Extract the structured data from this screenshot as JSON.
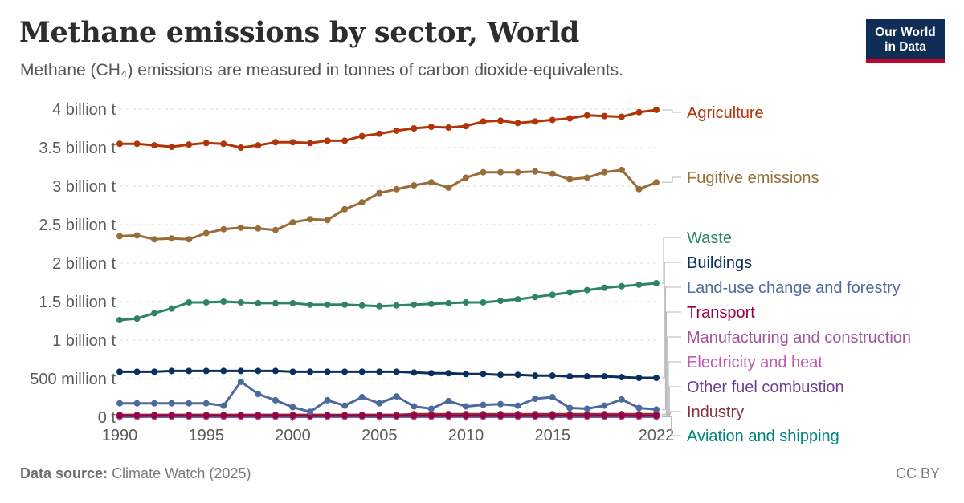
{
  "header": {
    "title": "Methane emissions by sector, World",
    "subtitle": "Methane (CH₄) emissions are measured in tonnes of carbon dioxide-equivalents.",
    "logo_line1": "Our World",
    "logo_line2": "in Data"
  },
  "footer": {
    "source_label": "Data source:",
    "source_value": "Climate Watch (2025)",
    "license": "CC BY"
  },
  "chart_data": {
    "type": "line",
    "title": "Methane emissions by sector, World",
    "subtitle": "Methane (CH₄) emissions are measured in tonnes of carbon dioxide-equivalents.",
    "xlabel": "",
    "ylabel": "",
    "ylim": [
      0,
      4000000000
    ],
    "xlim": [
      1990,
      2021
    ],
    "grid": true,
    "legend_position": "right",
    "x_ticks": [
      1990,
      1995,
      2000,
      2005,
      2010,
      2015,
      2022
    ],
    "x_tick_labels": [
      "1990",
      "1995",
      "2000",
      "2005",
      "2010",
      "2015",
      "2022"
    ],
    "y_ticks": [
      0,
      500000000,
      1000000000,
      1500000000,
      2000000000,
      2500000000,
      3000000000,
      3500000000,
      4000000000
    ],
    "y_tick_labels": [
      "0 t",
      "500 million t",
      "1 billion t",
      "1.5 billion t",
      "2 billion t",
      "2.5 billion t",
      "3 billion t",
      "3.5 billion t",
      "4 billion t"
    ],
    "x": [
      1990,
      1991,
      1992,
      1993,
      1994,
      1995,
      1996,
      1997,
      1998,
      1999,
      2000,
      2001,
      2002,
      2003,
      2004,
      2005,
      2006,
      2007,
      2008,
      2009,
      2010,
      2011,
      2012,
      2013,
      2014,
      2015,
      2016,
      2017,
      2018,
      2019,
      2020,
      2021
    ],
    "series": [
      {
        "name": "Agriculture",
        "color": "#b13507",
        "values": [
          3550000000,
          3550000000,
          3530000000,
          3510000000,
          3540000000,
          3560000000,
          3550000000,
          3500000000,
          3530000000,
          3570000000,
          3570000000,
          3560000000,
          3590000000,
          3590000000,
          3650000000,
          3680000000,
          3720000000,
          3750000000,
          3770000000,
          3760000000,
          3780000000,
          3840000000,
          3850000000,
          3820000000,
          3840000000,
          3860000000,
          3880000000,
          3920000000,
          3910000000,
          3900000000,
          3960000000,
          3990000000
        ]
      },
      {
        "name": "Fugitive emissions",
        "color": "#996d39",
        "values": [
          2350000000,
          2360000000,
          2310000000,
          2320000000,
          2310000000,
          2390000000,
          2440000000,
          2460000000,
          2450000000,
          2430000000,
          2530000000,
          2570000000,
          2560000000,
          2700000000,
          2790000000,
          2910000000,
          2960000000,
          3010000000,
          3050000000,
          2980000000,
          3110000000,
          3180000000,
          3180000000,
          3180000000,
          3190000000,
          3160000000,
          3090000000,
          3110000000,
          3180000000,
          3210000000,
          2960000000,
          3050000000
        ]
      },
      {
        "name": "Waste",
        "color": "#2c8465",
        "values": [
          1260000000,
          1280000000,
          1350000000,
          1410000000,
          1490000000,
          1490000000,
          1500000000,
          1490000000,
          1480000000,
          1480000000,
          1480000000,
          1460000000,
          1460000000,
          1460000000,
          1450000000,
          1440000000,
          1450000000,
          1460000000,
          1470000000,
          1480000000,
          1490000000,
          1490000000,
          1510000000,
          1530000000,
          1560000000,
          1590000000,
          1620000000,
          1650000000,
          1680000000,
          1700000000,
          1720000000,
          1740000000
        ]
      },
      {
        "name": "Buildings",
        "color": "#0a2f5e",
        "values": [
          590000000,
          590000000,
          590000000,
          600000000,
          600000000,
          600000000,
          600000000,
          600000000,
          600000000,
          600000000,
          590000000,
          590000000,
          590000000,
          590000000,
          590000000,
          590000000,
          590000000,
          580000000,
          570000000,
          570000000,
          560000000,
          560000000,
          550000000,
          550000000,
          540000000,
          540000000,
          530000000,
          530000000,
          530000000,
          520000000,
          510000000,
          510000000
        ]
      },
      {
        "name": "Land-use change and forestry",
        "color": "#4c6a9c",
        "values": [
          180000000,
          180000000,
          180000000,
          180000000,
          180000000,
          180000000,
          150000000,
          460000000,
          300000000,
          220000000,
          130000000,
          70000000,
          220000000,
          150000000,
          260000000,
          180000000,
          270000000,
          140000000,
          110000000,
          210000000,
          140000000,
          160000000,
          170000000,
          150000000,
          240000000,
          260000000,
          120000000,
          110000000,
          150000000,
          230000000,
          120000000,
          100000000
        ]
      },
      {
        "name": "Transport",
        "color": "#970046",
        "values": [
          20000000,
          20000000,
          20000000,
          20000000,
          20000000,
          20000000,
          20000000,
          20000000,
          20000000,
          20000000,
          20000000,
          20000000,
          20000000,
          20000000,
          20000000,
          20000000,
          20000000,
          20000000,
          20000000,
          20000000,
          20000000,
          20000000,
          20000000,
          20000000,
          20000000,
          20000000,
          20000000,
          20000000,
          20000000,
          20000000,
          20000000,
          20000000
        ]
      },
      {
        "name": "Manufacturing and construction",
        "color": "#a2559c",
        "values": [
          20000000,
          20000000,
          20000000,
          20000000,
          20000000,
          20000000,
          20000000,
          20000000,
          20000000,
          20000000,
          20000000,
          20000000,
          20000000,
          20000000,
          20000000,
          20000000,
          20000000,
          20000000,
          20000000,
          20000000,
          20000000,
          20000000,
          20000000,
          20000000,
          20000000,
          20000000,
          20000000,
          20000000,
          20000000,
          20000000,
          20000000,
          20000000
        ]
      },
      {
        "name": "Electricity and heat",
        "color": "#c05ab0",
        "values": [
          10000000,
          10000000,
          10000000,
          10000000,
          10000000,
          10000000,
          10000000,
          10000000,
          10000000,
          10000000,
          10000000,
          10000000,
          10000000,
          10000000,
          10000000,
          10000000,
          10000000,
          10000000,
          10000000,
          10000000,
          10000000,
          10000000,
          10000000,
          10000000,
          10000000,
          10000000,
          10000000,
          10000000,
          10000000,
          10000000,
          10000000,
          10000000
        ]
      },
      {
        "name": "Other fuel combustion",
        "color": "#6d3e91",
        "values": [
          10000000,
          10000000,
          10000000,
          10000000,
          10000000,
          10000000,
          10000000,
          10000000,
          10000000,
          10000000,
          10000000,
          10000000,
          10000000,
          10000000,
          10000000,
          10000000,
          10000000,
          10000000,
          10000000,
          10000000,
          10000000,
          10000000,
          10000000,
          10000000,
          10000000,
          10000000,
          10000000,
          10000000,
          10000000,
          10000000,
          10000000,
          10000000
        ]
      },
      {
        "name": "Industry",
        "color": "#883039",
        "values": [
          30000000,
          30000000,
          30000000,
          30000000,
          30000000,
          30000000,
          30000000,
          30000000,
          30000000,
          30000000,
          30000000,
          30000000,
          30000000,
          30000000,
          30000000,
          30000000,
          30000000,
          40000000,
          40000000,
          40000000,
          40000000,
          40000000,
          40000000,
          40000000,
          40000000,
          40000000,
          40000000,
          40000000,
          40000000,
          40000000,
          40000000,
          40000000
        ]
      },
      {
        "name": "Aviation and shipping",
        "color": "#00847e",
        "values": [
          5000000,
          5000000,
          5000000,
          5000000,
          5000000,
          5000000,
          5000000,
          5000000,
          5000000,
          5000000,
          5000000,
          5000000,
          5000000,
          5000000,
          5000000,
          5000000,
          5000000,
          5000000,
          5000000,
          5000000,
          5000000,
          5000000,
          5000000,
          5000000,
          5000000,
          5000000,
          5000000,
          5000000,
          5000000,
          5000000,
          5000000,
          5000000
        ]
      }
    ]
  }
}
